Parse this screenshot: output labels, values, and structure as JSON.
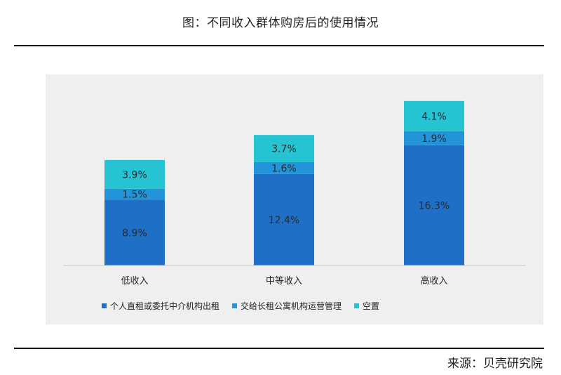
{
  "figure": {
    "title": "图：不同收入群体购房后的使用情况",
    "source": "来源：贝壳研究院"
  },
  "chart_data": {
    "type": "bar",
    "stacked": true,
    "categories": [
      "低收入",
      "中等收入",
      "高收入"
    ],
    "series": [
      {
        "name": "个人直租或委托中介机构出租",
        "color": "#1f6fc6",
        "values": [
          8.9,
          12.4,
          16.3
        ],
        "labels": [
          "8.9%",
          "12.4%",
          "16.3%"
        ]
      },
      {
        "name": "交给长租公寓机构运营管理",
        "color": "#2394d9",
        "values": [
          1.5,
          1.6,
          1.9
        ],
        "labels": [
          "1.5%",
          "1.6%",
          "1.9%"
        ]
      },
      {
        "name": "空置",
        "color": "#26c3d3",
        "values": [
          3.9,
          3.7,
          4.1
        ],
        "labels": [
          "3.9%",
          "3.7%",
          "4.1%"
        ]
      }
    ],
    "ylim": [
      0,
      22
    ],
    "legend_position": "bottom",
    "grid": false
  }
}
